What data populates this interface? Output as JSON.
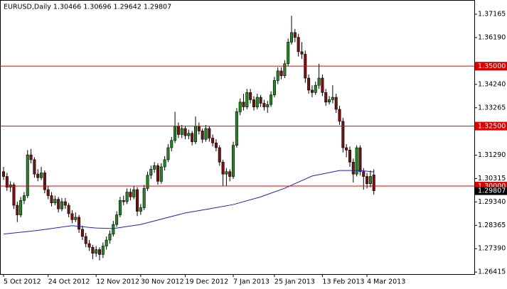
{
  "chart_data": {
    "type": "candlestick",
    "title": "EURUSD,Daily  1.30466 1.30696 1.29642 1.29807",
    "up_color": "#1f8a1f",
    "down_color": "#7b1010",
    "ohlc": [
      [
        1.306,
        1.308,
        1.3025,
        1.304
      ],
      [
        1.304,
        1.3055,
        1.298,
        1.2995
      ],
      [
        1.2995,
        1.302,
        1.2975,
        1.3005
      ],
      [
        1.3005,
        1.3015,
        1.2905,
        1.292
      ],
      [
        1.292,
        1.2935,
        1.285,
        1.288
      ],
      [
        1.288,
        1.2955,
        1.287,
        1.294
      ],
      [
        1.294,
        1.2975,
        1.2925,
        1.296
      ],
      [
        1.296,
        1.315,
        1.295,
        1.313
      ],
      [
        1.313,
        1.3155,
        1.3095,
        1.311
      ],
      [
        1.311,
        1.312,
        1.3035,
        1.305
      ],
      [
        1.305,
        1.307,
        1.302,
        1.3035
      ],
      [
        1.3035,
        1.308,
        1.3025,
        1.3055
      ],
      [
        1.3055,
        1.3065,
        1.297,
        1.2985
      ],
      [
        1.2985,
        1.3,
        1.2945,
        1.296
      ],
      [
        1.296,
        1.2975,
        1.2915,
        1.293
      ],
      [
        1.293,
        1.296,
        1.292,
        1.2945
      ],
      [
        1.2945,
        1.2955,
        1.289,
        1.2905
      ],
      [
        1.2905,
        1.295,
        1.2895,
        1.2935
      ],
      [
        1.2935,
        1.295,
        1.2905,
        1.292
      ],
      [
        1.292,
        1.293,
        1.287,
        1.2885
      ],
      [
        1.2885,
        1.29,
        1.2845,
        1.286
      ],
      [
        1.286,
        1.289,
        1.285,
        1.287
      ],
      [
        1.287,
        1.288,
        1.2805,
        1.282
      ],
      [
        1.282,
        1.2835,
        1.2775,
        1.279
      ],
      [
        1.279,
        1.2805,
        1.2745,
        1.276
      ],
      [
        1.276,
        1.2775,
        1.273,
        1.2745
      ],
      [
        1.2745,
        1.2755,
        1.2695,
        1.272
      ],
      [
        1.272,
        1.275,
        1.2705,
        1.2735
      ],
      [
        1.2735,
        1.2745,
        1.269,
        1.2715
      ],
      [
        1.2715,
        1.2765,
        1.27,
        1.275
      ],
      [
        1.275,
        1.279,
        1.2735,
        1.2775
      ],
      [
        1.2775,
        1.2815,
        1.276,
        1.28
      ],
      [
        1.28,
        1.2855,
        1.279,
        1.284
      ],
      [
        1.284,
        1.2895,
        1.283,
        1.288
      ],
      [
        1.288,
        1.2955,
        1.287,
        1.294
      ],
      [
        1.294,
        1.296,
        1.292,
        1.2935
      ],
      [
        1.2935,
        1.299,
        1.2925,
        1.2975
      ],
      [
        1.2975,
        1.299,
        1.294,
        1.2955
      ],
      [
        1.2955,
        1.3,
        1.2945,
        1.2985
      ],
      [
        1.2985,
        1.2995,
        1.2875,
        1.2895
      ],
      [
        1.2895,
        1.2925,
        1.288,
        1.291
      ],
      [
        1.291,
        1.3005,
        1.29,
        1.299
      ],
      [
        1.299,
        1.306,
        1.298,
        1.3045
      ],
      [
        1.3045,
        1.3085,
        1.303,
        1.307
      ],
      [
        1.307,
        1.31,
        1.3055,
        1.3085
      ],
      [
        1.3085,
        1.3095,
        1.3005,
        1.302
      ],
      [
        1.302,
        1.3095,
        1.301,
        1.308
      ],
      [
        1.308,
        1.3125,
        1.3065,
        1.311
      ],
      [
        1.311,
        1.3175,
        1.31,
        1.316
      ],
      [
        1.316,
        1.3205,
        1.3145,
        1.319
      ],
      [
        1.319,
        1.331,
        1.318,
        1.325
      ],
      [
        1.325,
        1.3265,
        1.32,
        1.3215
      ],
      [
        1.3215,
        1.3255,
        1.32,
        1.324
      ],
      [
        1.324,
        1.325,
        1.3195,
        1.321
      ],
      [
        1.321,
        1.3235,
        1.3195,
        1.322
      ],
      [
        1.322,
        1.323,
        1.317,
        1.3185
      ],
      [
        1.3185,
        1.329,
        1.3175,
        1.325
      ],
      [
        1.325,
        1.3265,
        1.3215,
        1.323
      ],
      [
        1.323,
        1.324,
        1.318,
        1.3195
      ],
      [
        1.3195,
        1.3255,
        1.3185,
        1.324
      ],
      [
        1.324,
        1.325,
        1.3185,
        1.32
      ],
      [
        1.32,
        1.3215,
        1.3165,
        1.318
      ],
      [
        1.318,
        1.3195,
        1.3145,
        1.316
      ],
      [
        1.316,
        1.317,
        1.3085,
        1.31
      ],
      [
        1.31,
        1.311,
        1.3,
        1.305
      ],
      [
        1.305,
        1.3075,
        1.3,
        1.306
      ],
      [
        1.306,
        1.307,
        1.302,
        1.304
      ],
      [
        1.304,
        1.3185,
        1.303,
        1.317
      ],
      [
        1.317,
        1.3325,
        1.316,
        1.331
      ],
      [
        1.331,
        1.3365,
        1.3295,
        1.335
      ],
      [
        1.335,
        1.3385,
        1.3315,
        1.333
      ],
      [
        1.333,
        1.3405,
        1.332,
        1.339
      ],
      [
        1.339,
        1.3405,
        1.3345,
        1.336
      ],
      [
        1.336,
        1.3375,
        1.3315,
        1.333
      ],
      [
        1.333,
        1.3385,
        1.332,
        1.337
      ],
      [
        1.337,
        1.338,
        1.333,
        1.3345
      ],
      [
        1.3345,
        1.336,
        1.3315,
        1.333
      ],
      [
        1.333,
        1.3355,
        1.3305,
        1.334
      ],
      [
        1.334,
        1.3395,
        1.333,
        1.338
      ],
      [
        1.338,
        1.3455,
        1.337,
        1.344
      ],
      [
        1.344,
        1.3495,
        1.3425,
        1.348
      ],
      [
        1.348,
        1.3495,
        1.3445,
        1.346
      ],
      [
        1.346,
        1.3525,
        1.345,
        1.351
      ],
      [
        1.351,
        1.3615,
        1.35,
        1.36
      ],
      [
        1.36,
        1.371,
        1.359,
        1.364
      ],
      [
        1.364,
        1.3655,
        1.36,
        1.362
      ],
      [
        1.362,
        1.3635,
        1.354,
        1.356
      ],
      [
        1.356,
        1.36,
        1.353,
        1.355
      ],
      [
        1.355,
        1.3565,
        1.343,
        1.345
      ],
      [
        1.345,
        1.3465,
        1.3385,
        1.34
      ],
      [
        1.34,
        1.342,
        1.337,
        1.339
      ],
      [
        1.339,
        1.3435,
        1.338,
        1.342
      ],
      [
        1.342,
        1.351,
        1.3405,
        1.345
      ],
      [
        1.345,
        1.3465,
        1.3375,
        1.339
      ],
      [
        1.339,
        1.3405,
        1.3335,
        1.335
      ],
      [
        1.335,
        1.3375,
        1.334,
        1.336
      ],
      [
        1.336,
        1.342,
        1.3345,
        1.337
      ],
      [
        1.337,
        1.3385,
        1.3305,
        1.332
      ],
      [
        1.332,
        1.3335,
        1.3255,
        1.327
      ],
      [
        1.327,
        1.3285,
        1.314,
        1.316
      ],
      [
        1.316,
        1.3175,
        1.312,
        1.315
      ],
      [
        1.315,
        1.3165,
        1.308,
        1.31
      ],
      [
        1.31,
        1.3115,
        1.3015,
        1.305
      ],
      [
        1.305,
        1.317,
        1.304,
        1.316
      ],
      [
        1.316,
        1.317,
        1.3045,
        1.306
      ],
      [
        1.306,
        1.3075,
        1.2985,
        1.304
      ],
      [
        1.304,
        1.3055,
        1.299,
        1.301
      ],
      [
        1.301,
        1.3065,
        1.2995,
        1.304
      ],
      [
        1.30466,
        1.30696,
        1.29642,
        1.29807
      ]
    ],
    "ma": {
      "color": "#1f1fc8",
      "x": [
        0,
        10,
        20,
        27,
        32,
        40,
        53,
        60,
        67,
        75,
        82,
        90,
        98,
        104,
        108
      ],
      "values": [
        1.28,
        1.2815,
        1.2835,
        1.2825,
        1.2823,
        1.284,
        1.2888,
        1.2905,
        1.2923,
        1.2955,
        1.2991,
        1.3042,
        1.3065,
        1.3065,
        1.3059
      ]
    },
    "level_color": "#e00000",
    "levels": [
      {
        "value": 1.35,
        "label": "1.35000"
      },
      {
        "value": 1.325,
        "label": "1.32500"
      },
      {
        "value": 1.3,
        "label": "1.30000"
      }
    ],
    "last_price": {
      "value": 1.29807,
      "label": "1.29807"
    },
    "xlim": [
      -1.04,
      137.3
    ],
    "ylim": [
      1.26331,
      1.37757
    ],
    "xticks": [
      {
        "value": 0,
        "label": "5 Oct 2012"
      },
      {
        "value": 13,
        "label": "24 Oct 2012"
      },
      {
        "value": 27,
        "label": "12 Nov 2012"
      },
      {
        "value": 40,
        "label": "30 Nov 2012"
      },
      {
        "value": 53,
        "label": "19 Dec 2012"
      },
      {
        "value": 67,
        "label": "7 Jan 2013"
      },
      {
        "value": 79,
        "label": "25 Jan 2013"
      },
      {
        "value": 93,
        "label": "13 Feb 2013"
      },
      {
        "value": 106,
        "label": "4 Mar 2013"
      }
    ],
    "yticks": [
      {
        "value": 1.37165,
        "label": "1.37165"
      },
      {
        "value": 1.3619,
        "label": "1.36190"
      },
      {
        "value": 1.3424,
        "label": "1.34240"
      },
      {
        "value": 1.33265,
        "label": "1.33265"
      },
      {
        "value": 1.3129,
        "label": "1.31290"
      },
      {
        "value": 1.30315,
        "label": "1.30315"
      },
      {
        "value": 1.2934,
        "label": "1.29340"
      },
      {
        "value": 1.28365,
        "label": "1.28365"
      },
      {
        "value": 1.2739,
        "label": "1.27390"
      },
      {
        "value": 1.26415,
        "label": "1.26415"
      }
    ]
  }
}
